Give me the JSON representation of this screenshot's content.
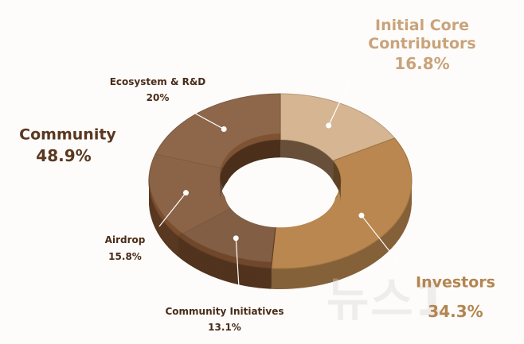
{
  "chart_data": {
    "type": "pie",
    "donut": true,
    "categories": [
      "Initial Core Contributors",
      "Investors",
      "Community Initiatives",
      "Airdrop",
      "Ecosystem & R&D"
    ],
    "values": [
      16.8,
      34.3,
      13.1,
      15.8,
      20
    ],
    "value_labels": [
      "16.8%",
      "34.3%",
      "13.1%",
      "15.8%",
      "20%"
    ],
    "colors": [
      "#d6b592",
      "#b9874f",
      "#70472a",
      "#7b4e2e",
      "#7e5232"
    ],
    "group": {
      "name": "Community",
      "value": 48.9,
      "value_label": "48.9%"
    }
  },
  "watermark": "뉴스1"
}
